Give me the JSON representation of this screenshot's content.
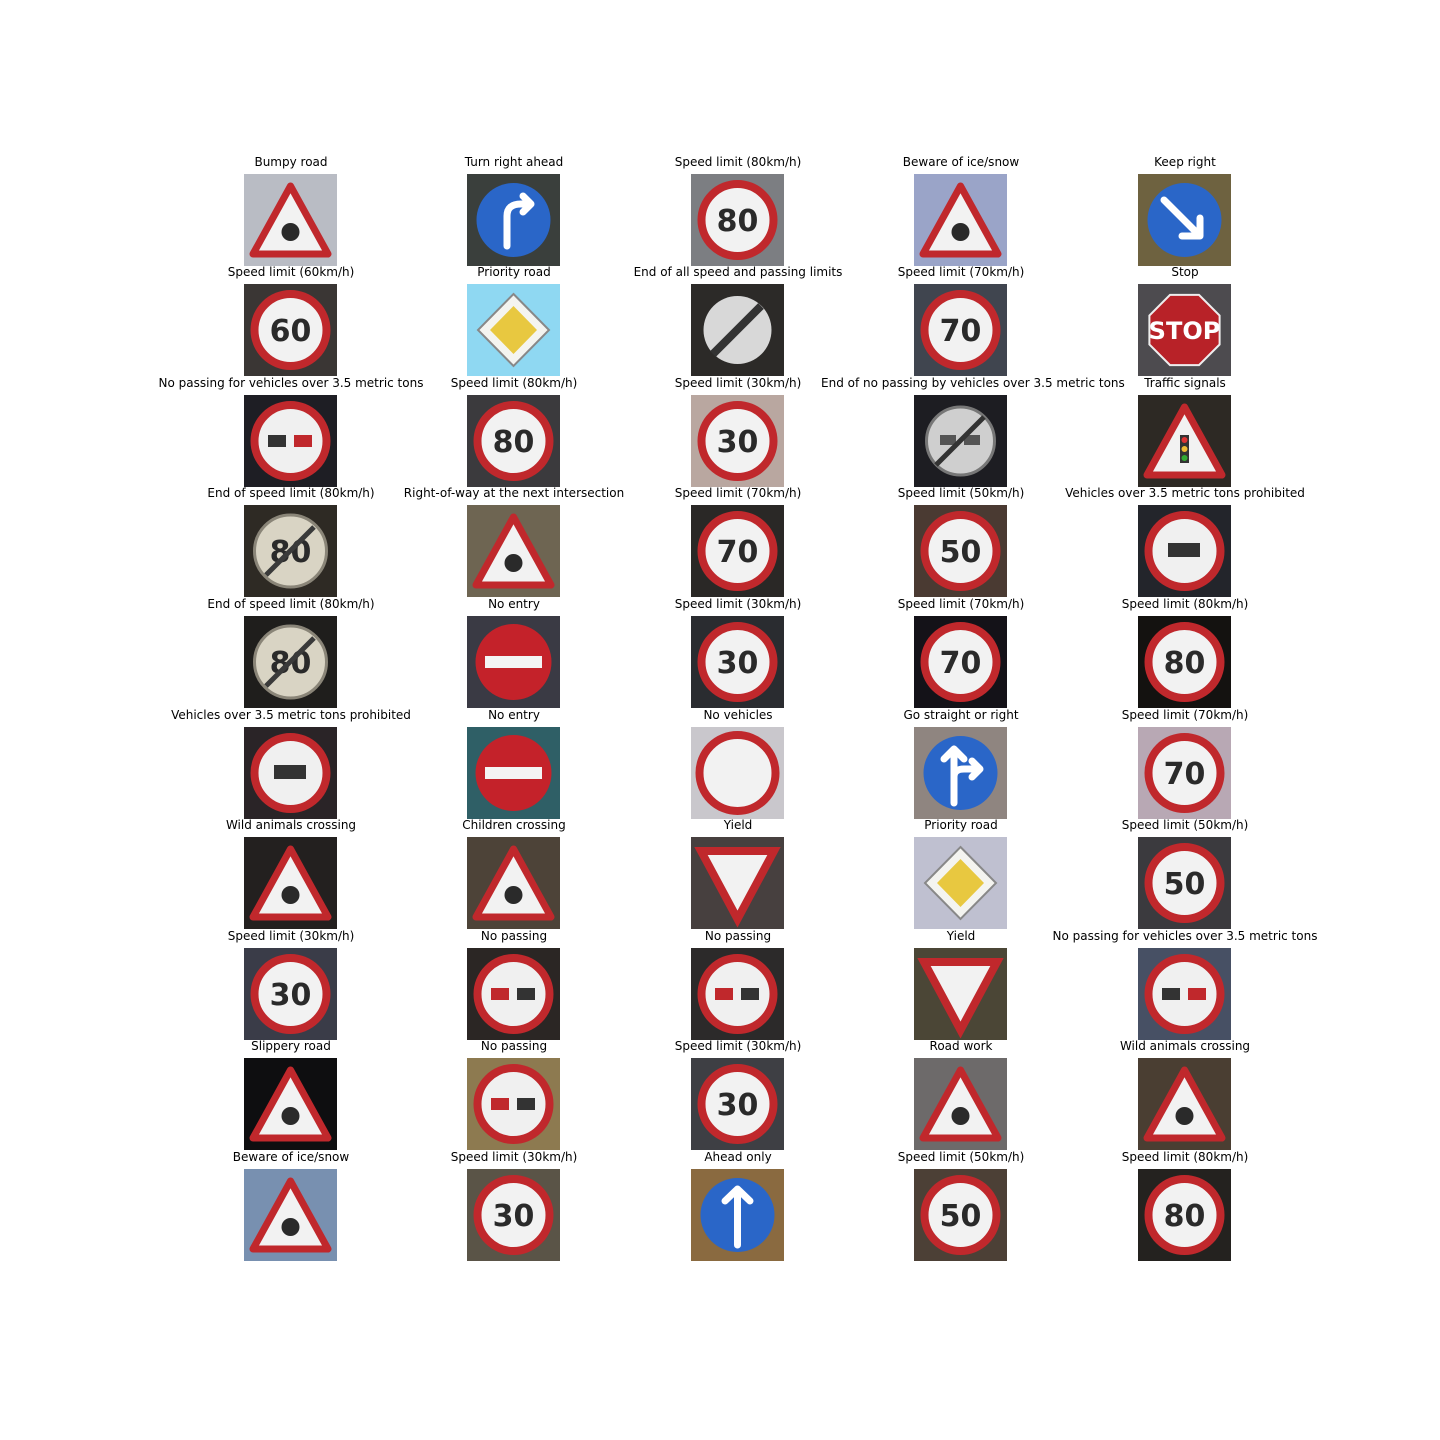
{
  "figure": {
    "images": [
      {
        "label": "Bumpy road",
        "icon": "bumpy-road-sign",
        "bg": "#b9bcc4"
      },
      {
        "label": "Turn right ahead",
        "icon": "turn-right-ahead-sign",
        "bg": "#3a3f3c"
      },
      {
        "label": "Speed limit (80km/h)",
        "icon": "speed-limit-80-sign",
        "bg": "#7c7e82",
        "text": "80"
      },
      {
        "label": "Beware of ice/snow",
        "icon": "ice-snow-sign",
        "bg": "#9aa4c8"
      },
      {
        "label": "Keep right",
        "icon": "keep-right-sign",
        "bg": "#6e6240"
      },
      {
        "label": "Speed limit (60km/h)",
        "icon": "speed-limit-60-sign",
        "bg": "#3a3634",
        "text": "60"
      },
      {
        "label": "Priority road",
        "icon": "priority-road-sign",
        "bg": "#8fd8f2"
      },
      {
        "label": "End of all speed and passing limits",
        "icon": "end-of-limits-sign",
        "bg": "#2c2a28"
      },
      {
        "label": "Speed limit (70km/h)",
        "icon": "speed-limit-70-sign",
        "bg": "#40454f",
        "text": "70"
      },
      {
        "label": "Stop",
        "icon": "stop-sign",
        "bg": "#4d4b4f",
        "text": "STOP"
      },
      {
        "label": "No passing for vehicles over 3.5 metric tons",
        "icon": "no-passing-trucks-sign",
        "bg": "#1e1e24"
      },
      {
        "label": "Speed limit (80km/h)",
        "icon": "speed-limit-80-sign",
        "bg": "#3b3a3d",
        "text": "80"
      },
      {
        "label": "Speed limit (30km/h)",
        "icon": "speed-limit-30-sign",
        "bg": "#b9a7a0",
        "text": "30"
      },
      {
        "label": "End of no passing by vehicles over 3.5 metric tons",
        "icon": "end-no-passing-trucks-sign",
        "bg": "#1d1d22"
      },
      {
        "label": "Traffic signals",
        "icon": "traffic-signals-sign",
        "bg": "#2d2924"
      },
      {
        "label": "End of speed limit (80km/h)",
        "icon": "end-speed-limit-80-sign",
        "bg": "#2e2a24",
        "text": "80"
      },
      {
        "label": "Right-of-way at the next intersection",
        "icon": "right-of-way-sign",
        "bg": "#6e6552"
      },
      {
        "label": "Speed limit (70km/h)",
        "icon": "speed-limit-70-sign",
        "bg": "#2a2826",
        "text": "70"
      },
      {
        "label": "Speed limit (50km/h)",
        "icon": "speed-limit-50-sign",
        "bg": "#4a3a32",
        "text": "50"
      },
      {
        "label": "Vehicles over 3.5 metric tons prohibited",
        "icon": "no-trucks-sign",
        "bg": "#23252b"
      },
      {
        "label": "End of speed limit (80km/h)",
        "icon": "end-speed-limit-80-sign",
        "bg": "#1f1e1c",
        "text": "80"
      },
      {
        "label": "No entry",
        "icon": "no-entry-sign",
        "bg": "#3a3a44"
      },
      {
        "label": "Speed limit (30km/h)",
        "icon": "speed-limit-30-sign",
        "bg": "#2a2c30",
        "text": "30"
      },
      {
        "label": "Speed limit (70km/h)",
        "icon": "speed-limit-70-sign",
        "bg": "#141218",
        "text": "70"
      },
      {
        "label": "Speed limit (80km/h)",
        "icon": "speed-limit-80-sign",
        "bg": "#141210",
        "text": "80"
      },
      {
        "label": "Vehicles over 3.5 metric tons prohibited",
        "icon": "no-trucks-sign",
        "bg": "#2a2427"
      },
      {
        "label": "No entry",
        "icon": "no-entry-sign",
        "bg": "#2f5f66"
      },
      {
        "label": "No vehicles",
        "icon": "no-vehicles-sign",
        "bg": "#c9c7cc"
      },
      {
        "label": "Go straight or right",
        "icon": "straight-or-right-sign",
        "bg": "#8f8580"
      },
      {
        "label": "Speed limit (70km/h)",
        "icon": "speed-limit-70-sign",
        "bg": "#b8a8b4",
        "text": "70"
      },
      {
        "label": "Wild animals crossing",
        "icon": "wild-animals-sign",
        "bg": "#23201f"
      },
      {
        "label": "Children crossing",
        "icon": "children-crossing-sign",
        "bg": "#4d4338"
      },
      {
        "label": "Yield",
        "icon": "yield-sign",
        "bg": "#47403f"
      },
      {
        "label": "Priority road",
        "icon": "priority-road-sign",
        "bg": "#bfc0d0"
      },
      {
        "label": "Speed limit (50km/h)",
        "icon": "speed-limit-50-sign",
        "bg": "#3b3a3e",
        "text": "50"
      },
      {
        "label": "Speed limit (30km/h)",
        "icon": "speed-limit-30-sign",
        "bg": "#3a3c48",
        "text": "30"
      },
      {
        "label": "No passing",
        "icon": "no-passing-sign",
        "bg": "#2b2624"
      },
      {
        "label": "No passing",
        "icon": "no-passing-sign",
        "bg": "#2c2a2a"
      },
      {
        "label": "Yield",
        "icon": "yield-sign",
        "bg": "#4b4636"
      },
      {
        "label": "No passing for vehicles over 3.5 metric tons",
        "icon": "no-passing-trucks-sign",
        "bg": "#475064"
      },
      {
        "label": "Slippery road",
        "icon": "slippery-road-sign",
        "bg": "#0e0e10"
      },
      {
        "label": "No passing",
        "icon": "no-passing-sign",
        "bg": "#8d7a50"
      },
      {
        "label": "Speed limit (30km/h)",
        "icon": "speed-limit-30-sign",
        "bg": "#3e3f44",
        "text": "30"
      },
      {
        "label": "Road work",
        "icon": "road-work-sign",
        "bg": "#6d6a6a"
      },
      {
        "label": "Wild animals crossing",
        "icon": "wild-animals-sign",
        "bg": "#4a3e32"
      },
      {
        "label": "Beware of ice/snow",
        "icon": "ice-snow-sign",
        "bg": "#7890b0"
      },
      {
        "label": "Speed limit (30km/h)",
        "icon": "speed-limit-30-sign",
        "bg": "#5a5447",
        "text": "30"
      },
      {
        "label": "Ahead only",
        "icon": "ahead-only-sign",
        "bg": "#8a6a40"
      },
      {
        "label": "Speed limit (50km/h)",
        "icon": "speed-limit-50-sign",
        "bg": "#4c4036",
        "text": "50"
      },
      {
        "label": "Speed limit (80km/h)",
        "icon": "speed-limit-80-sign",
        "bg": "#24221f",
        "text": "80"
      }
    ]
  }
}
